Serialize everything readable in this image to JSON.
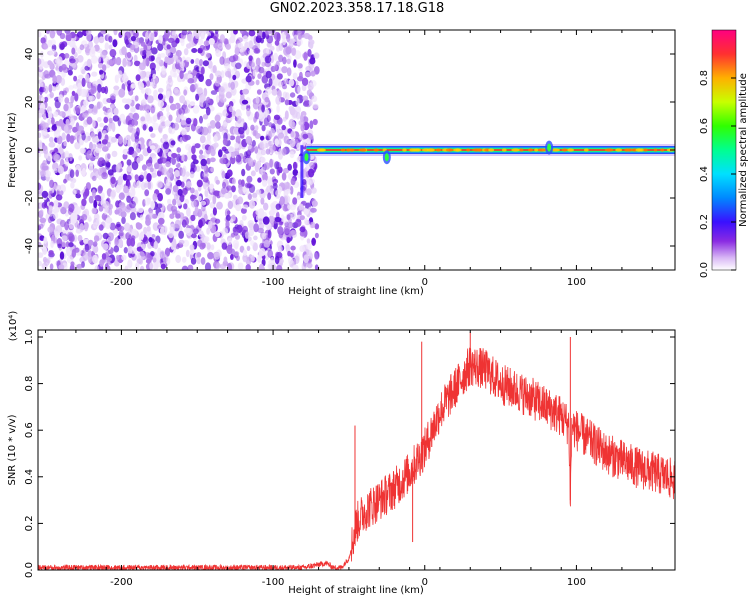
{
  "title": "GN02.2023.358.17.18.G18",
  "chart_data": [
    {
      "type": "heatmap",
      "xlabel": "Height of straight line (km)",
      "ylabel": "Frequency (Hz)",
      "xlim": [
        -255,
        165
      ],
      "ylim": [
        -50,
        50
      ],
      "xticks": [
        -200,
        -100,
        0,
        100
      ],
      "yticks": [
        -40,
        -20,
        0,
        20,
        40
      ],
      "colorbar": {
        "label": "Normalized spectral amplitude",
        "range": [
          0.0,
          1.0
        ],
        "ticks": [
          "0.0",
          "0.2",
          "0.4",
          "0.6",
          "0.8"
        ],
        "colors": [
          "#ffffff",
          "#c9a6f5",
          "#7b1fe0",
          "#3a10ff",
          "#00b0ff",
          "#00ffb0",
          "#30ff00",
          "#c8ff00",
          "#ffb000",
          "#ff3030",
          "#ff0080"
        ]
      },
      "noise_region_x": [
        -255,
        -75
      ],
      "signal_line": {
        "x_start": -78,
        "x_end": 165,
        "frequency": 0,
        "peak_amplitude": 1.0,
        "features": [
          {
            "x": -78,
            "freq": -3
          },
          {
            "x": -25,
            "freq": -3
          },
          {
            "x": 82,
            "freq": 1
          }
        ]
      }
    },
    {
      "type": "line",
      "xlabel": "Height of straight line (km)",
      "ylabel": "SNR (10 * v/v)",
      "scale_label": "(x10⁴)",
      "xlim": [
        -255,
        165
      ],
      "ylim": [
        0,
        1.03
      ],
      "xticks": [
        -200,
        -100,
        0,
        100
      ],
      "yticks": [
        "0.0",
        "0.2",
        "0.4",
        "0.6",
        "0.8",
        "1.0"
      ],
      "color": "#ef3333",
      "envelope": {
        "x": [
          -255,
          -80,
          -65,
          -60,
          -55,
          -50,
          -45,
          -40,
          -30,
          -20,
          -10,
          0,
          10,
          20,
          30,
          40,
          50,
          60,
          70,
          80,
          90,
          95,
          96,
          97,
          100,
          110,
          120,
          130,
          140,
          150,
          160,
          165
        ],
        "y": [
          0.01,
          0.01,
          0.03,
          0.01,
          0.01,
          0.05,
          0.2,
          0.25,
          0.3,
          0.35,
          0.42,
          0.52,
          0.68,
          0.78,
          0.88,
          0.86,
          0.8,
          0.77,
          0.74,
          0.7,
          0.66,
          0.62,
          0.3,
          0.62,
          0.6,
          0.55,
          0.5,
          0.47,
          0.44,
          0.42,
          0.4,
          0.38
        ]
      },
      "spikes": [
        {
          "x": -46,
          "y": 0.62
        },
        {
          "x": -2,
          "y": 0.98
        },
        {
          "x": 96,
          "y": 1.0
        },
        {
          "x": -8,
          "y": 0.12
        },
        {
          "x": 30,
          "y": 1.02
        }
      ]
    }
  ]
}
